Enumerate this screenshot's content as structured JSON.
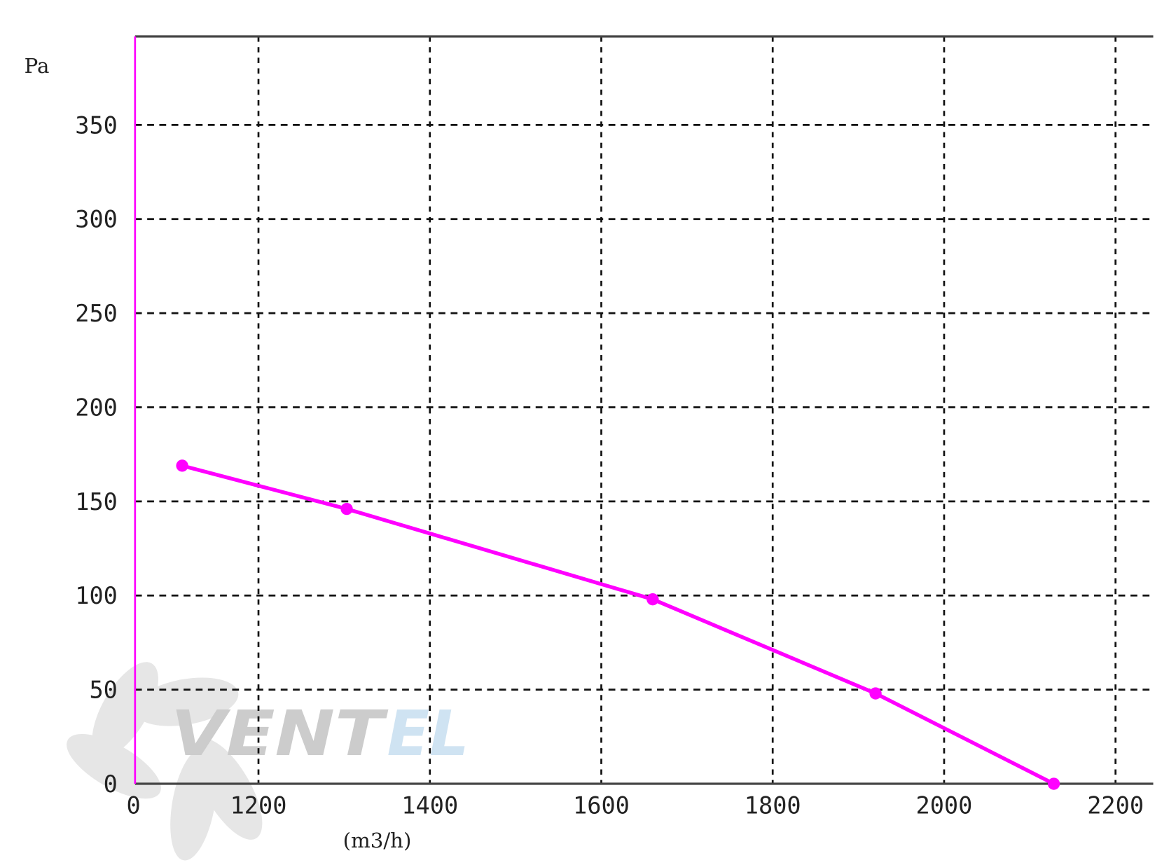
{
  "chart_data": {
    "type": "line",
    "title": "",
    "xlabel": "(m3/h)",
    "ylabel": "Pa",
    "xlim": [
      1056,
      2244
    ],
    "ylim": [
      0,
      397
    ],
    "x_ticks": [
      1200,
      1400,
      1600,
      1800,
      2000,
      2200
    ],
    "x_origin_label": "0",
    "y_ticks": [
      0,
      50,
      100,
      150,
      200,
      250,
      300,
      350
    ],
    "grid": true,
    "grid_style": "dashed",
    "legend": "none",
    "series": [
      {
        "color": "#ff00ff",
        "markers": true,
        "x": [
          1111,
          1303,
          1660,
          1920,
          2128
        ],
        "y": [
          169,
          146,
          98,
          48,
          0
        ]
      }
    ],
    "watermark": "Ventel"
  },
  "colors": {
    "series": "#ff00ff",
    "grid": "#111111",
    "axis": "#444444",
    "watermark_gray": "#cccccc",
    "watermark_blue": "#cfe3f2"
  }
}
